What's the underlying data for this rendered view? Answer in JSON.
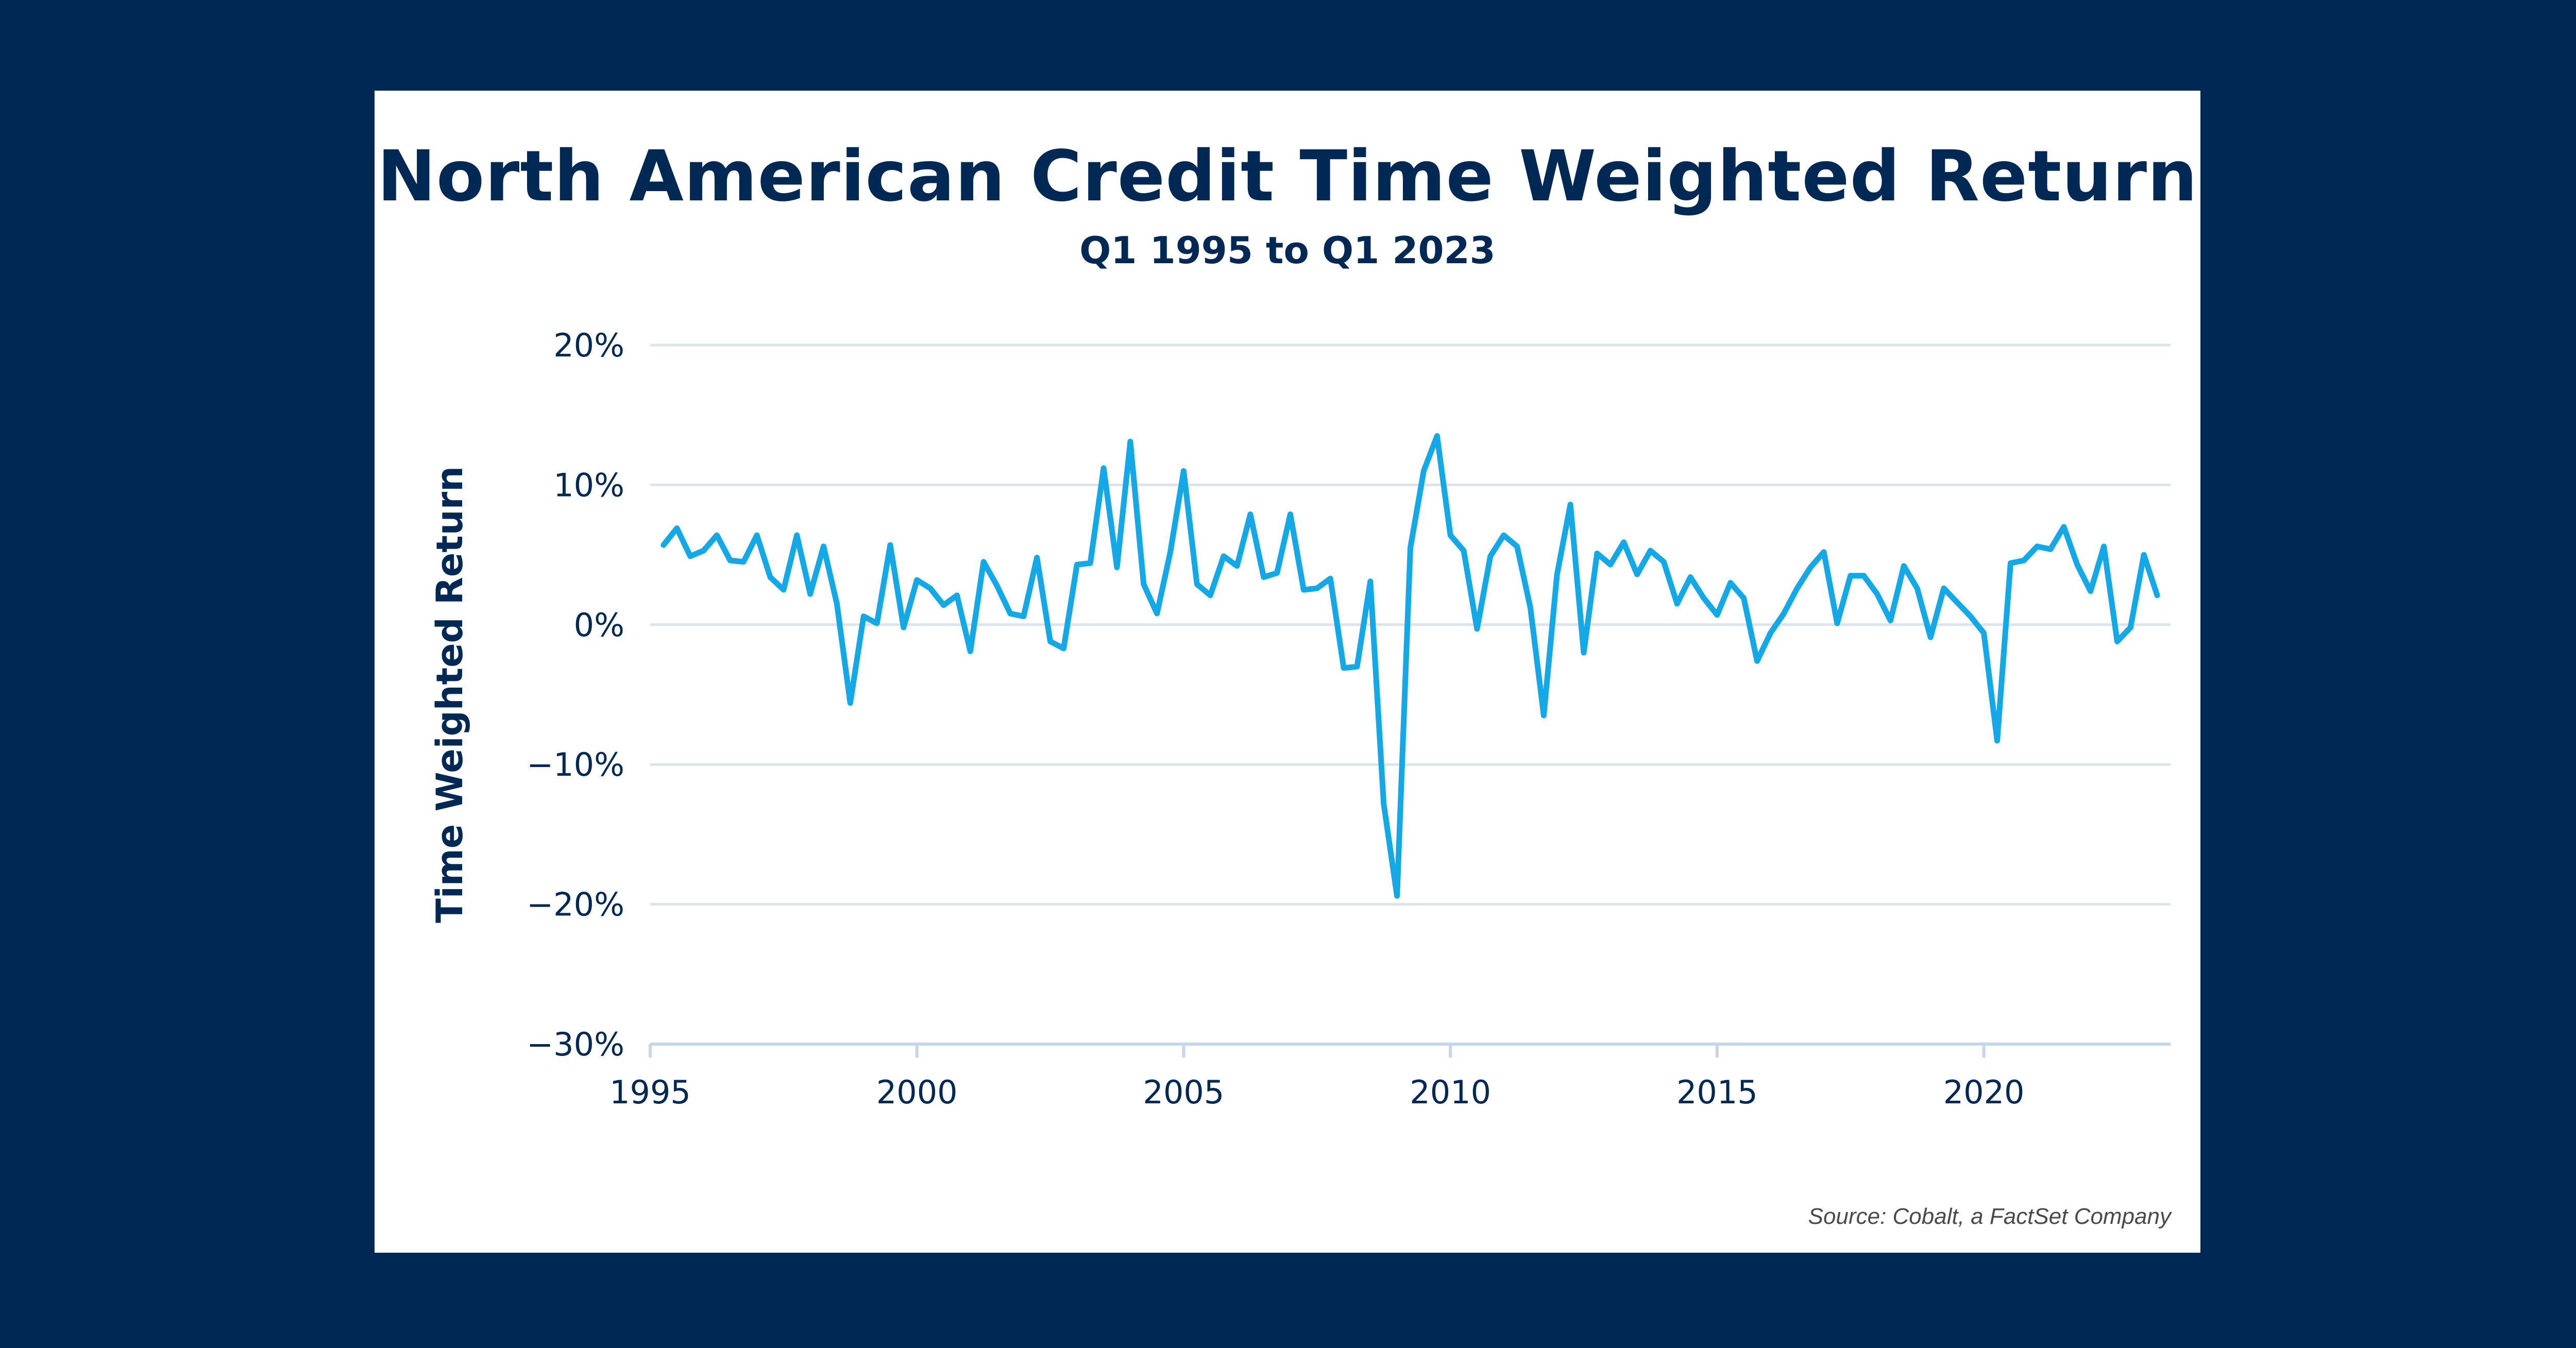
{
  "colors": {
    "background": "#002855",
    "card": "#ffffff",
    "text": "#002855",
    "line": "#14a8e6",
    "grid": "#dde3ea",
    "axis": "#c6d6ea"
  },
  "chart_data": {
    "type": "line",
    "title": "North American Credit Time Weighted Return",
    "subtitle": "Q1 1995 to Q1 2023",
    "xlabel": "",
    "ylabel": "Time Weighted Return",
    "source": "Source: Cobalt, a FactSet Company",
    "xlim": [
      1995,
      2023.5
    ],
    "ylim": [
      -30,
      20
    ],
    "x_ticks": [
      1995,
      2000,
      2005,
      2010,
      2015,
      2020
    ],
    "x_tick_labels": [
      "1995",
      "2000",
      "2005",
      "2010",
      "2015",
      "2020"
    ],
    "y_ticks": [
      20,
      10,
      0,
      -10,
      -20,
      -30
    ],
    "y_tick_labels": [
      "20%",
      "10%",
      "0%",
      "−10%",
      "−20%",
      "−30%"
    ],
    "grid": true,
    "series": [
      {
        "values": [
          {
            "x": 1995.25,
            "y": 5.7
          },
          {
            "x": 1995.5,
            "y": 6.9
          },
          {
            "x": 1995.75,
            "y": 4.9
          },
          {
            "x": 1996.0,
            "y": 5.3
          },
          {
            "x": 1996.25,
            "y": 6.4
          },
          {
            "x": 1996.5,
            "y": 4.6
          },
          {
            "x": 1996.75,
            "y": 4.5
          },
          {
            "x": 1997.0,
            "y": 6.4
          },
          {
            "x": 1997.25,
            "y": 3.4
          },
          {
            "x": 1997.5,
            "y": 2.5
          },
          {
            "x": 1997.75,
            "y": 6.4
          },
          {
            "x": 1998.0,
            "y": 2.2
          },
          {
            "x": 1998.25,
            "y": 5.6
          },
          {
            "x": 1998.5,
            "y": 1.5
          },
          {
            "x": 1998.75,
            "y": -5.6
          },
          {
            "x": 1999.0,
            "y": 0.6
          },
          {
            "x": 1999.25,
            "y": 0.1
          },
          {
            "x": 1999.5,
            "y": 5.7
          },
          {
            "x": 1999.75,
            "y": -0.2
          },
          {
            "x": 2000.0,
            "y": 3.2
          },
          {
            "x": 2000.25,
            "y": 2.6
          },
          {
            "x": 2000.5,
            "y": 1.4
          },
          {
            "x": 2000.75,
            "y": 2.1
          },
          {
            "x": 2001.0,
            "y": -1.9
          },
          {
            "x": 2001.25,
            "y": 4.5
          },
          {
            "x": 2001.5,
            "y": 2.8
          },
          {
            "x": 2001.75,
            "y": 0.8
          },
          {
            "x": 2002.0,
            "y": 0.6
          },
          {
            "x": 2002.25,
            "y": 4.8
          },
          {
            "x": 2002.5,
            "y": -1.2
          },
          {
            "x": 2002.75,
            "y": -1.7
          },
          {
            "x": 2003.0,
            "y": 4.3
          },
          {
            "x": 2003.25,
            "y": 4.4
          },
          {
            "x": 2003.5,
            "y": 11.2
          },
          {
            "x": 2003.75,
            "y": 4.1
          },
          {
            "x": 2004.0,
            "y": 13.1
          },
          {
            "x": 2004.25,
            "y": 2.9
          },
          {
            "x": 2004.5,
            "y": 0.8
          },
          {
            "x": 2004.75,
            "y": 5.2
          },
          {
            "x": 2005.0,
            "y": 11.0
          },
          {
            "x": 2005.25,
            "y": 2.9
          },
          {
            "x": 2005.5,
            "y": 2.1
          },
          {
            "x": 2005.75,
            "y": 4.9
          },
          {
            "x": 2006.0,
            "y": 4.2
          },
          {
            "x": 2006.25,
            "y": 7.9
          },
          {
            "x": 2006.5,
            "y": 3.4
          },
          {
            "x": 2006.75,
            "y": 3.7
          },
          {
            "x": 2007.0,
            "y": 7.9
          },
          {
            "x": 2007.25,
            "y": 2.5
          },
          {
            "x": 2007.5,
            "y": 2.6
          },
          {
            "x": 2007.75,
            "y": 3.3
          },
          {
            "x": 2008.0,
            "y": -3.1
          },
          {
            "x": 2008.25,
            "y": -3.0
          },
          {
            "x": 2008.5,
            "y": 3.1
          },
          {
            "x": 2008.75,
            "y": -12.8
          },
          {
            "x": 2009.0,
            "y": -19.4
          },
          {
            "x": 2009.25,
            "y": 5.5
          },
          {
            "x": 2009.5,
            "y": 11.0
          },
          {
            "x": 2009.75,
            "y": 13.5
          },
          {
            "x": 2010.0,
            "y": 6.4
          },
          {
            "x": 2010.25,
            "y": 5.3
          },
          {
            "x": 2010.5,
            "y": -0.3
          },
          {
            "x": 2010.75,
            "y": 4.9
          },
          {
            "x": 2011.0,
            "y": 6.4
          },
          {
            "x": 2011.25,
            "y": 5.6
          },
          {
            "x": 2011.5,
            "y": 1.2
          },
          {
            "x": 2011.75,
            "y": -6.5
          },
          {
            "x": 2012.0,
            "y": 3.6
          },
          {
            "x": 2012.25,
            "y": 8.6
          },
          {
            "x": 2012.5,
            "y": -2.0
          },
          {
            "x": 2012.75,
            "y": 5.1
          },
          {
            "x": 2013.0,
            "y": 4.3
          },
          {
            "x": 2013.25,
            "y": 5.9
          },
          {
            "x": 2013.5,
            "y": 3.6
          },
          {
            "x": 2013.75,
            "y": 5.3
          },
          {
            "x": 2014.0,
            "y": 4.5
          },
          {
            "x": 2014.25,
            "y": 1.5
          },
          {
            "x": 2014.5,
            "y": 3.4
          },
          {
            "x": 2014.75,
            "y": 1.9
          },
          {
            "x": 2015.0,
            "y": 0.7
          },
          {
            "x": 2015.25,
            "y": 3.0
          },
          {
            "x": 2015.5,
            "y": 1.9
          },
          {
            "x": 2015.75,
            "y": -2.6
          },
          {
            "x": 2016.0,
            "y": -0.6
          },
          {
            "x": 2016.25,
            "y": 0.8
          },
          {
            "x": 2016.5,
            "y": 2.6
          },
          {
            "x": 2016.75,
            "y": 4.1
          },
          {
            "x": 2017.0,
            "y": 5.2
          },
          {
            "x": 2017.25,
            "y": 0.1
          },
          {
            "x": 2017.5,
            "y": 3.5
          },
          {
            "x": 2017.75,
            "y": 3.5
          },
          {
            "x": 2018.0,
            "y": 2.2
          },
          {
            "x": 2018.25,
            "y": 0.3
          },
          {
            "x": 2018.5,
            "y": 4.2
          },
          {
            "x": 2018.75,
            "y": 2.6
          },
          {
            "x": 2019.0,
            "y": -0.9
          },
          {
            "x": 2019.25,
            "y": 2.6
          },
          {
            "x": 2019.5,
            "y": 1.6
          },
          {
            "x": 2019.75,
            "y": 0.6
          },
          {
            "x": 2020.0,
            "y": -0.6
          },
          {
            "x": 2020.25,
            "y": -8.3
          },
          {
            "x": 2020.5,
            "y": 4.4
          },
          {
            "x": 2020.75,
            "y": 4.6
          },
          {
            "x": 2021.0,
            "y": 5.6
          },
          {
            "x": 2021.25,
            "y": 5.4
          },
          {
            "x": 2021.5,
            "y": 7.0
          },
          {
            "x": 2021.75,
            "y": 4.3
          },
          {
            "x": 2022.0,
            "y": 2.4
          },
          {
            "x": 2022.25,
            "y": 5.6
          },
          {
            "x": 2022.5,
            "y": -1.2
          },
          {
            "x": 2022.75,
            "y": -0.2
          },
          {
            "x": 2023.0,
            "y": 5.0
          },
          {
            "x": 2023.25,
            "y": 2.1
          }
        ]
      }
    ]
  }
}
